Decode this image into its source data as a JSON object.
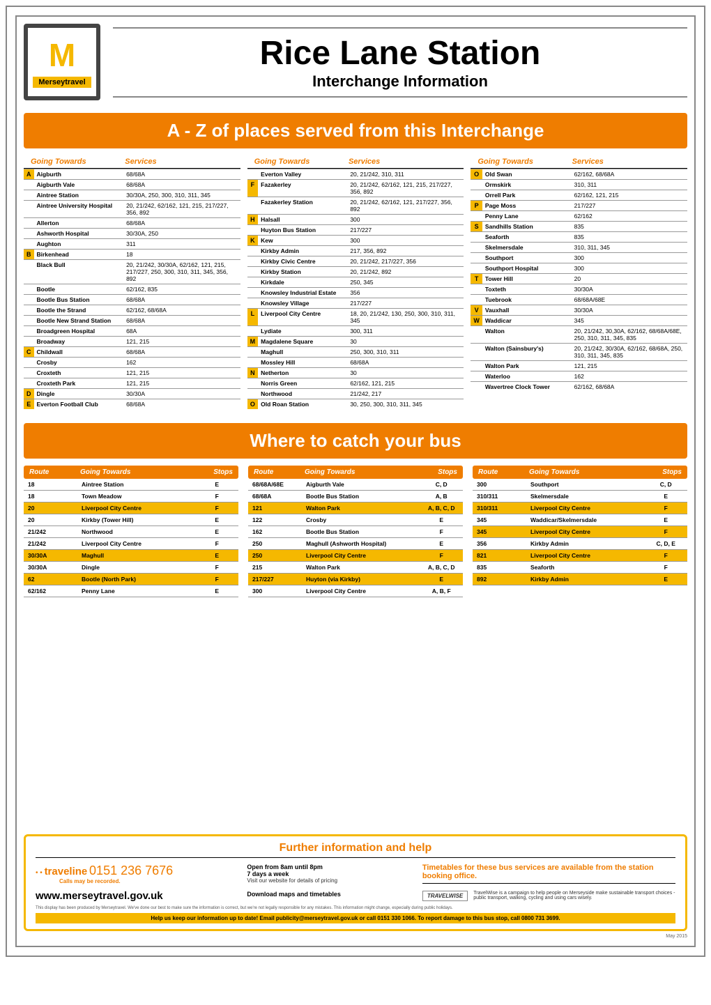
{
  "header": {
    "logo_letter": "M",
    "logo_label": "Merseytravel",
    "title": "Rice Lane Station",
    "subtitle": "Interchange Information"
  },
  "band_az": "A - Z of places served from this Interchange",
  "band_bus": "Where to catch your bus",
  "col_heads": {
    "going": "Going Towards",
    "services": "Services"
  },
  "destinations": [
    [
      {
        "l": "A",
        "p": "Aigburth",
        "s": "68/68A"
      },
      {
        "l": "",
        "p": "Aigburth Vale",
        "s": "68/68A"
      },
      {
        "l": "",
        "p": "Aintree Station",
        "s": "30/30A, 250, 300, 310, 311, 345"
      },
      {
        "l": "",
        "p": "Aintree University Hospital",
        "s": "20, 21/242, 62/162, 121, 215, 217/227, 356, 892"
      },
      {
        "l": "",
        "p": "Allerton",
        "s": "68/68A"
      },
      {
        "l": "",
        "p": "Ashworth Hospital",
        "s": "30/30A, 250"
      },
      {
        "l": "",
        "p": "Aughton",
        "s": "311"
      },
      {
        "l": "B",
        "p": "Birkenhead",
        "s": "18"
      },
      {
        "l": "",
        "p": "Black Bull",
        "s": "20, 21/242, 30/30A, 62/162, 121, 215, 217/227, 250, 300, 310, 311, 345, 356, 892"
      },
      {
        "l": "",
        "p": "Bootle",
        "s": "62/162, 835"
      },
      {
        "l": "",
        "p": "Bootle Bus Station",
        "s": "68/68A"
      },
      {
        "l": "",
        "p": "Bootle the Strand",
        "s": "62/162, 68/68A"
      },
      {
        "l": "",
        "p": "Bootle New Strand Station",
        "s": "68/68A"
      },
      {
        "l": "",
        "p": "Broadgreen Hospital",
        "s": "68A"
      },
      {
        "l": "",
        "p": "Broadway",
        "s": "121, 215"
      },
      {
        "l": "C",
        "p": "Childwall",
        "s": "68/68A"
      },
      {
        "l": "",
        "p": "Crosby",
        "s": "162"
      },
      {
        "l": "",
        "p": "Croxteth",
        "s": "121, 215"
      },
      {
        "l": "",
        "p": "Croxteth Park",
        "s": "121, 215"
      },
      {
        "l": "D",
        "p": "Dingle",
        "s": "30/30A"
      },
      {
        "l": "E",
        "p": "Everton Football Club",
        "s": "68/68A"
      }
    ],
    [
      {
        "l": "",
        "p": "Everton Valley",
        "s": "20, 21/242, 310, 311"
      },
      {
        "l": "F",
        "p": "Fazakerley",
        "s": "20, 21/242, 62/162, 121, 215, 217/227, 356, 892"
      },
      {
        "l": "",
        "p": "Fazakerley Station",
        "s": "20, 21/242, 62/162, 121, 217/227, 356, 892"
      },
      {
        "l": "H",
        "p": "Halsall",
        "s": "300"
      },
      {
        "l": "",
        "p": "Huyton Bus Station",
        "s": "217/227"
      },
      {
        "l": "K",
        "p": "Kew",
        "s": "300"
      },
      {
        "l": "",
        "p": "Kirkby Admin",
        "s": "217, 356, 892"
      },
      {
        "l": "",
        "p": "Kirkby Civic Centre",
        "s": "20, 21/242, 217/227, 356"
      },
      {
        "l": "",
        "p": "Kirkby Station",
        "s": "20, 21/242, 892"
      },
      {
        "l": "",
        "p": "Kirkdale",
        "s": "250, 345"
      },
      {
        "l": "",
        "p": "Knowsley Industrial Estate",
        "s": "356"
      },
      {
        "l": "",
        "p": "Knowsley Village",
        "s": "217/227"
      },
      {
        "l": "L",
        "p": "Liverpool City Centre",
        "s": "18, 20, 21/242, 130, 250, 300, 310, 311, 345"
      },
      {
        "l": "",
        "p": "Lydiate",
        "s": "300, 311"
      },
      {
        "l": "M",
        "p": "Magdalene Square",
        "s": "30"
      },
      {
        "l": "",
        "p": "Maghull",
        "s": "250, 300, 310, 311"
      },
      {
        "l": "",
        "p": "Mossley Hill",
        "s": "68/68A"
      },
      {
        "l": "N",
        "p": "Netherton",
        "s": "30"
      },
      {
        "l": "",
        "p": "Norris Green",
        "s": "62/162, 121, 215"
      },
      {
        "l": "",
        "p": "Northwood",
        "s": "21/242, 217"
      },
      {
        "l": "O",
        "p": "Old Roan Station",
        "s": "30, 250, 300, 310, 311, 345"
      }
    ],
    [
      {
        "l": "O",
        "p": "Old Swan",
        "s": "62/162, 68/68A"
      },
      {
        "l": "",
        "p": "Ormskirk",
        "s": "310, 311"
      },
      {
        "l": "",
        "p": "Orrell Park",
        "s": "62/162, 121, 215"
      },
      {
        "l": "P",
        "p": "Page Moss",
        "s": "217/227"
      },
      {
        "l": "",
        "p": "Penny Lane",
        "s": "62/162"
      },
      {
        "l": "S",
        "p": "Sandhills Station",
        "s": "835"
      },
      {
        "l": "",
        "p": "Seaforth",
        "s": "835"
      },
      {
        "l": "",
        "p": "Skelmersdale",
        "s": "310, 311, 345"
      },
      {
        "l": "",
        "p": "Southport",
        "s": "300"
      },
      {
        "l": "",
        "p": "Southport Hospital",
        "s": "300"
      },
      {
        "l": "T",
        "p": "Tower Hill",
        "s": "20"
      },
      {
        "l": "",
        "p": "Toxteth",
        "s": "30/30A"
      },
      {
        "l": "",
        "p": "Tuebrook",
        "s": "68/68A/68E"
      },
      {
        "l": "V",
        "p": "Vauxhall",
        "s": "30/30A"
      },
      {
        "l": "W",
        "p": "Waddicar",
        "s": "345"
      },
      {
        "l": "",
        "p": "Walton",
        "s": "20, 21/242, 30,30A, 62/162, 68/68A/68E, 250, 310, 311, 345, 835"
      },
      {
        "l": "",
        "p": "Walton (Sainsbury's)",
        "s": "20, 21/242, 30/30A, 62/162, 68/68A, 250, 310, 311, 345, 835"
      },
      {
        "l": "",
        "p": "Walton Park",
        "s": "121, 215"
      },
      {
        "l": "",
        "p": "Waterloo",
        "s": "162"
      },
      {
        "l": "",
        "p": "Wavertree Clock Tower",
        "s": "62/162, 68/68A"
      }
    ]
  ],
  "bus_heads": {
    "route": "Route",
    "going": "Going Towards",
    "stops": "Stops"
  },
  "bus": [
    [
      {
        "r": "18",
        "t": "Aintree Station",
        "s": "E",
        "hi": false
      },
      {
        "r": "18",
        "t": "Town Meadow",
        "s": "F",
        "hi": false
      },
      {
        "r": "20",
        "t": "Liverpool City Centre",
        "s": "F",
        "hi": true
      },
      {
        "r": "20",
        "t": "Kirkby (Tower Hill)",
        "s": "E",
        "hi": false
      },
      {
        "r": "21/242",
        "t": "Northwood",
        "s": "E",
        "hi": false
      },
      {
        "r": "21/242",
        "t": "Liverpool City Centre",
        "s": "F",
        "hi": false
      },
      {
        "r": "30/30A",
        "t": "Maghull",
        "s": "E",
        "hi": true
      },
      {
        "r": "30/30A",
        "t": "Dingle",
        "s": "F",
        "hi": false
      },
      {
        "r": "62",
        "t": "Bootle (North Park)",
        "s": "F",
        "hi": true
      },
      {
        "r": "62/162",
        "t": "Penny Lane",
        "s": "E",
        "hi": false
      }
    ],
    [
      {
        "r": "68/68A/68E",
        "t": "Aigburth Vale",
        "s": "C, D",
        "hi": false
      },
      {
        "r": "68/68A",
        "t": "Bootle Bus Station",
        "s": "A, B",
        "hi": false
      },
      {
        "r": "121",
        "t": "Walton Park",
        "s": "A, B, C, D",
        "hi": true
      },
      {
        "r": "122",
        "t": "Crosby",
        "s": "E",
        "hi": false
      },
      {
        "r": "162",
        "t": "Bootle Bus Station",
        "s": "F",
        "hi": false
      },
      {
        "r": "250",
        "t": "Maghull (Ashworth Hospital)",
        "s": "E",
        "hi": false
      },
      {
        "r": "250",
        "t": "Liverpool City Centre",
        "s": "F",
        "hi": true
      },
      {
        "r": "215",
        "t": "Walton Park",
        "s": "A, B, C, D",
        "hi": false
      },
      {
        "r": "217/227",
        "t": "Huyton (via Kirkby)",
        "s": "E",
        "hi": true
      },
      {
        "r": "300",
        "t": "Liverpool City Centre",
        "s": "A, B, F",
        "hi": false
      }
    ],
    [
      {
        "r": "300",
        "t": "Southport",
        "s": "C, D",
        "hi": false
      },
      {
        "r": "310/311",
        "t": "Skelmersdale",
        "s": "E",
        "hi": false
      },
      {
        "r": "310/311",
        "t": "Liverpool City Centre",
        "s": "F",
        "hi": true
      },
      {
        "r": "345",
        "t": "Waddicar/Skelmersdale",
        "s": "E",
        "hi": false
      },
      {
        "r": "345",
        "t": "Liverpool City Centre",
        "s": "F",
        "hi": true
      },
      {
        "r": "356",
        "t": "Kirkby Admin",
        "s": "C, D, E",
        "hi": false
      },
      {
        "r": "821",
        "t": "Liverpool City Centre",
        "s": "F",
        "hi": true
      },
      {
        "r": "835",
        "t": "Seaforth",
        "s": "F",
        "hi": false
      },
      {
        "r": "892",
        "t": "Kirkby Admin",
        "s": "E",
        "hi": true
      }
    ]
  ],
  "footer": {
    "title": "Further information and help",
    "traveline": "traveline",
    "phone": "0151 236 7676",
    "calls": "Calls may be recorded.",
    "website": "www.merseytravel.gov.uk",
    "hours": "Open from 8am until 8pm\n7 days a week",
    "hours_sub": "Visit our website for details of pricing",
    "download": "Download maps and timetables",
    "avail": "Timetables for these bus services are available from the station booking office.",
    "tw_logo": "TRAVELWISE",
    "tw_text": "TravelWise is a campaign to help people on Merseyside make sustainable transport choices - public transport, walking, cycling and using cars wisely.",
    "disclaimer": "This display has been produced by Merseytravel. We've done our best to make sure the information is correct, but we're not legally responsible for any mistakes. This information might change, especially during public holidays.",
    "help": "Help us keep our information up to date! Email publicity@merseytravel.gov.uk or call 0151 330 1066. To report damage to this bus stop, call 0800 731 3699.",
    "date": "May 2015"
  }
}
